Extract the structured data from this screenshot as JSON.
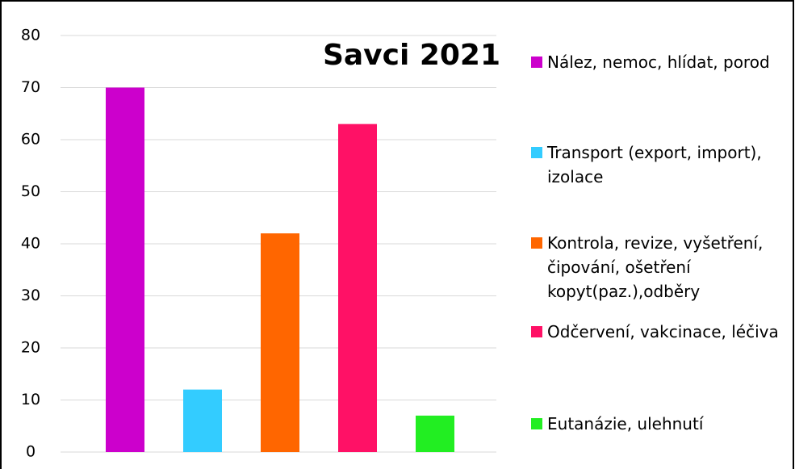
{
  "chart_data": {
    "type": "bar",
    "title": "Savci 2021",
    "categories": [
      null
    ],
    "series": [
      {
        "name": "Nález, nemoc, hlídat, porod",
        "color": "#cc00cc",
        "values": [
          70
        ]
      },
      {
        "name": "Transport (export, import), izolace",
        "color": "#33ccff",
        "values": [
          12
        ]
      },
      {
        "name": "Kontrola, revize, vyšetření, čipování, ošetření kopyt(paz.),odběry",
        "color": "#ff6600",
        "values": [
          42
        ]
      },
      {
        "name": "Odčervení, vakcinace, léčiva",
        "color": "#ff1166",
        "values": [
          63
        ]
      },
      {
        "name": "Eutanázie, ulehnutí",
        "color": "#22ee22",
        "values": [
          7
        ]
      }
    ],
    "ylim": [
      0,
      80
    ],
    "yticks": [
      0,
      10,
      20,
      30,
      40,
      50,
      60,
      70,
      80
    ],
    "grid": true,
    "legend": "right"
  }
}
